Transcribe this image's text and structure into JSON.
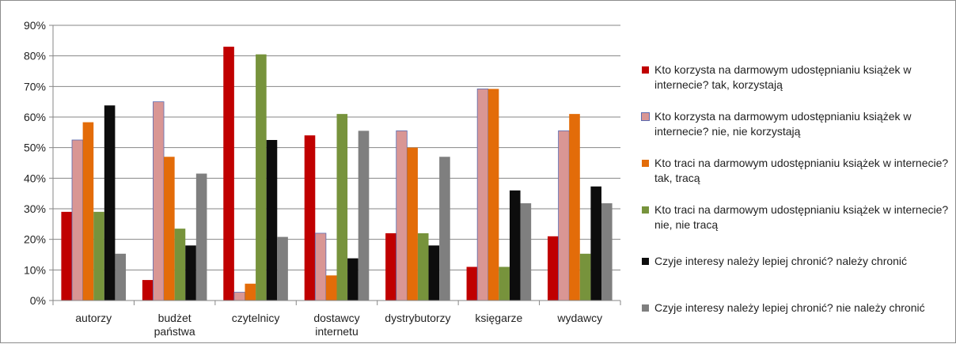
{
  "chart_data": {
    "type": "bar",
    "categories": [
      [
        "autorzy"
      ],
      [
        "budżet",
        "państwa"
      ],
      [
        "czytelnicy"
      ],
      [
        "dostawcy",
        "internetu"
      ],
      [
        "dystrybutorzy"
      ],
      [
        "księgarze"
      ],
      [
        "wydawcy"
      ]
    ],
    "ylim": [
      0,
      90
    ],
    "yticks": [
      "0%",
      "10%",
      "20%",
      "30%",
      "40%",
      "50%",
      "60%",
      "70%",
      "80%",
      "90%"
    ],
    "series": [
      {
        "name": "Kto korzysta na darmowym udostępnianiu książek w internecie?  tak, korzystają",
        "color": "#c00000",
        "values": [
          29,
          6.7,
          83,
          54,
          22,
          11,
          21
        ]
      },
      {
        "name": "Kto korzysta na darmowym udostępnianiu książek w internecie?  nie, nie korzystają",
        "color": "#d99694",
        "values": [
          52.5,
          65,
          2.7,
          22,
          55.5,
          69.2,
          55.5
        ]
      },
      {
        "name": "Kto traci na darmowym udostępnianiu książek w internecie?  tak, tracą",
        "color": "#e36c09",
        "values": [
          58.3,
          47,
          5.5,
          8.2,
          50,
          69.2,
          61
        ]
      },
      {
        "name": "Kto traci na darmowym udostępnianiu książek w internecie?  nie, nie tracą",
        "color": "#77933c",
        "values": [
          29,
          23.5,
          80.5,
          61,
          22,
          11,
          15.3
        ]
      },
      {
        "name": "Czyje interesy należy lepiej chronić? należy chronić",
        "color": "#0d0d0d",
        "values": [
          63.8,
          18,
          52.5,
          13.8,
          18,
          36,
          37.3
        ]
      },
      {
        "name": "Czyje interesy należy lepiej chronić? nie należy chronić",
        "color": "#7f7f7f",
        "values": [
          15.3,
          41.5,
          20.8,
          55.5,
          47,
          31.8,
          31.8
        ]
      }
    ],
    "grid": true,
    "legend_position": "right"
  }
}
